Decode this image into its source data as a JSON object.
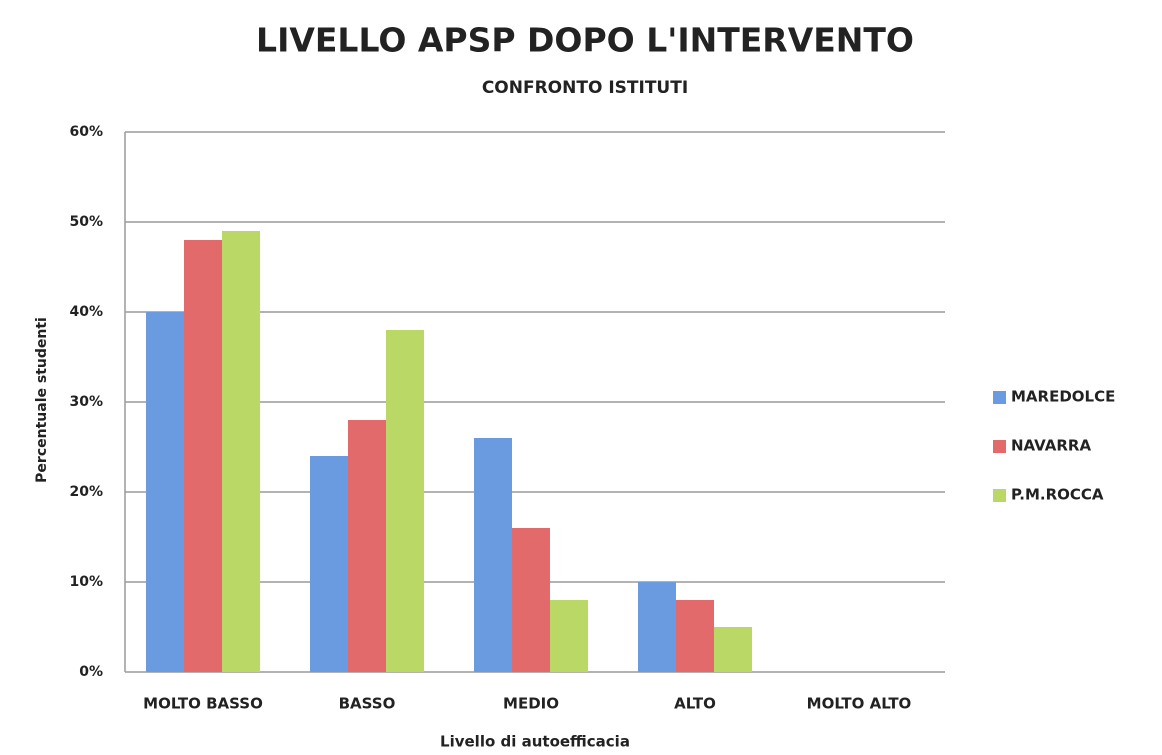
{
  "chart_data": {
    "type": "bar",
    "title": "LIVELLO APSP DOPO L'INTERVENTO",
    "subtitle": "CONFRONTO ISTITUTI",
    "x_label": "Livello di autoefficacia",
    "y_label": "Percentuale studenti",
    "categories": [
      "MOLTO BASSO",
      "BASSO",
      "MEDIO",
      "ALTO",
      "MOLTO ALTO"
    ],
    "series": [
      {
        "name": "MAREDOLCE",
        "color": "#6a9be0",
        "values": [
          40,
          24,
          26,
          10,
          0
        ]
      },
      {
        "name": "NAVARRA",
        "color": "#e36a6a",
        "values": [
          48,
          28,
          16,
          8,
          0
        ]
      },
      {
        "name": "P.M.ROCCA",
        "color": "#b9d866",
        "values": [
          49,
          38,
          8,
          5,
          0
        ]
      }
    ],
    "ylim": [
      0,
      60
    ],
    "yticks": [
      {
        "value": 0,
        "label": "0%"
      },
      {
        "value": 10,
        "label": "10%"
      },
      {
        "value": 20,
        "label": "20%"
      },
      {
        "value": 30,
        "label": "30%"
      },
      {
        "value": 40,
        "label": "40%"
      },
      {
        "value": 50,
        "label": "50%"
      },
      {
        "value": 60,
        "label": "60%"
      }
    ],
    "grid": true,
    "legend": "right"
  }
}
